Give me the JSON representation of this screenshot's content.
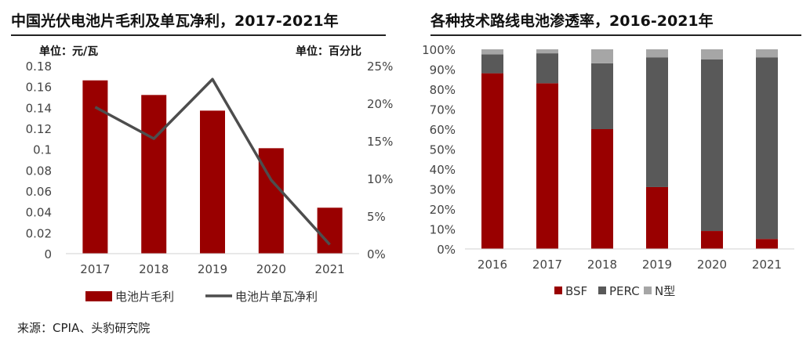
{
  "left_panel": {
    "title": "中国光伏电池片毛利及单瓦净利，2017-2021年",
    "unit_left": "单位：元/瓦",
    "unit_right": "单位：百分比"
  },
  "right_panel": {
    "title": "各种技术路线电池渗透率，2016-2021年"
  },
  "source": "来源：CPIA、头豹研究院",
  "colors": {
    "dark_red": "#990000",
    "dark_gray": "#595959",
    "light_gray": "#a6a6a6",
    "line": "#4d4d4d"
  },
  "chart_data": [
    {
      "type": "bar",
      "categories": [
        "2017",
        "2018",
        "2019",
        "2020",
        "2021"
      ],
      "series": [
        {
          "name": "电池片毛利",
          "type": "bar",
          "axis": "left",
          "values": [
            0.166,
            0.152,
            0.137,
            0.101,
            0.044
          ]
        },
        {
          "name": "电池片单瓦净利",
          "type": "line",
          "axis": "right",
          "values": [
            19.5,
            15.3,
            23.2,
            9.8,
            1.2
          ]
        }
      ],
      "y_left": {
        "min": 0,
        "max": 0.18,
        "ticks": [
          "0",
          "0.02",
          "0.04",
          "0.06",
          "0.08",
          "0.1",
          "0.12",
          "0.14",
          "0.16",
          "0.18"
        ]
      },
      "y_right": {
        "min": 0,
        "max": 25,
        "ticks": [
          "0%",
          "5%",
          "10%",
          "15%",
          "20%",
          "25%"
        ]
      },
      "legend_position": "bottom",
      "grid": false
    },
    {
      "type": "bar",
      "stacked": true,
      "categories": [
        "2016",
        "2017",
        "2018",
        "2019",
        "2020",
        "2021"
      ],
      "series": [
        {
          "name": "BSF",
          "values": [
            88,
            83,
            60,
            31,
            9,
            5
          ]
        },
        {
          "name": "PERC",
          "values": [
            9.5,
            15,
            33,
            65,
            86,
            91
          ]
        },
        {
          "name": "N型",
          "values": [
            2.5,
            2,
            7,
            4,
            5,
            4
          ]
        }
      ],
      "y": {
        "min": 0,
        "max": 100,
        "ticks": [
          "0%",
          "10%",
          "20%",
          "30%",
          "40%",
          "50%",
          "60%",
          "70%",
          "80%",
          "90%",
          "100%"
        ]
      },
      "legend_position": "bottom",
      "grid": false
    }
  ]
}
